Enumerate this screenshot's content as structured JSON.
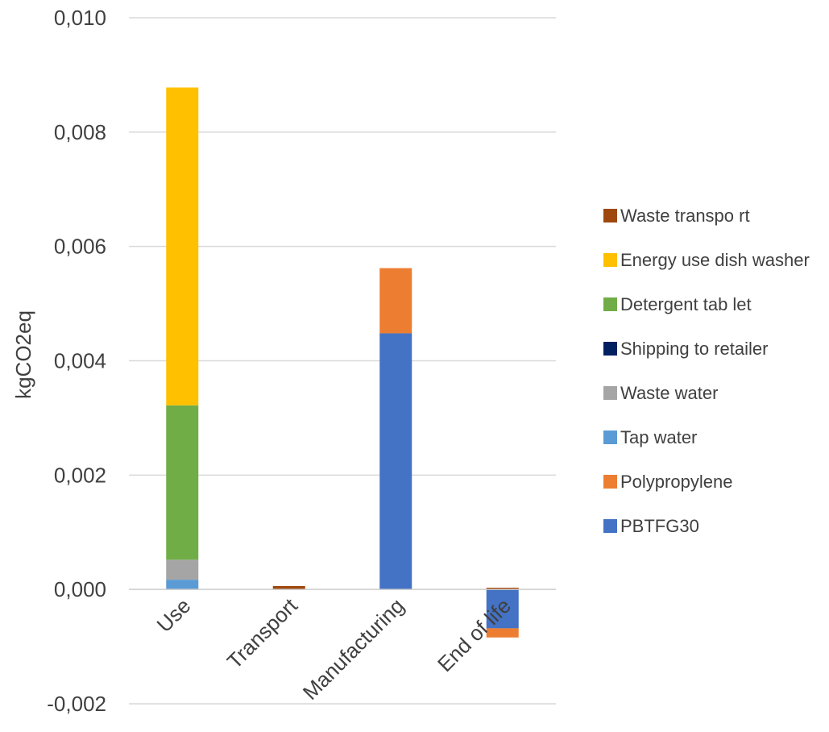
{
  "chart_data": {
    "type": "bar",
    "stacked": true,
    "ylabel": "kgCO2eq",
    "xlabel": "",
    "ylim": [
      -0.002,
      0.01
    ],
    "yticks": [
      "-0,002",
      "0,000",
      "0,002",
      "0,004",
      "0,006",
      "0,008",
      "0,010"
    ],
    "grid": true,
    "legend_position": "right",
    "categories": [
      "Use",
      "Transport",
      "Manufacturing",
      "End of life"
    ],
    "series": [
      {
        "name": "PBTFG30",
        "color": "#4472C4",
        "values": [
          0,
          0,
          0.00448,
          -0.00068
        ]
      },
      {
        "name": "Polypropylene",
        "color": "#ED7D31",
        "values": [
          0,
          0,
          0.00114,
          -0.00016
        ]
      },
      {
        "name": "Tap water",
        "color": "#5B9BD5",
        "values": [
          0.00017,
          0,
          0,
          0
        ]
      },
      {
        "name": "Waste water",
        "color": "#A5A5A5",
        "values": [
          0.00035,
          0,
          0,
          0
        ]
      },
      {
        "name": "Shipping to retailer",
        "color": "#002060",
        "values": [
          0,
          0,
          0,
          0
        ]
      },
      {
        "name": "Detergent tablet",
        "color": "#70AD47",
        "values": [
          0.0027,
          0,
          0,
          0
        ]
      },
      {
        "name": "Energy use dish washer",
        "color": "#FFC000",
        "values": [
          0.00556,
          0,
          0,
          0
        ]
      },
      {
        "name": "Waste transport",
        "color": "#9E480E",
        "values": [
          0,
          6e-05,
          0,
          3e-05
        ]
      }
    ],
    "legend_order": [
      "Waste transport",
      "Energy use dish washer",
      "Detergent tablet",
      "Shipping to retailer",
      "Waste water",
      "Tap water",
      "Polypropylene",
      "PBTFG30"
    ],
    "legend_labels": [
      "Waste transpo rt",
      "Energy use dish washer",
      "Detergent tab let",
      "Shipping to retailer",
      "Waste water",
      "Tap water",
      "Polypropylene",
      "PBTFG30"
    ]
  }
}
